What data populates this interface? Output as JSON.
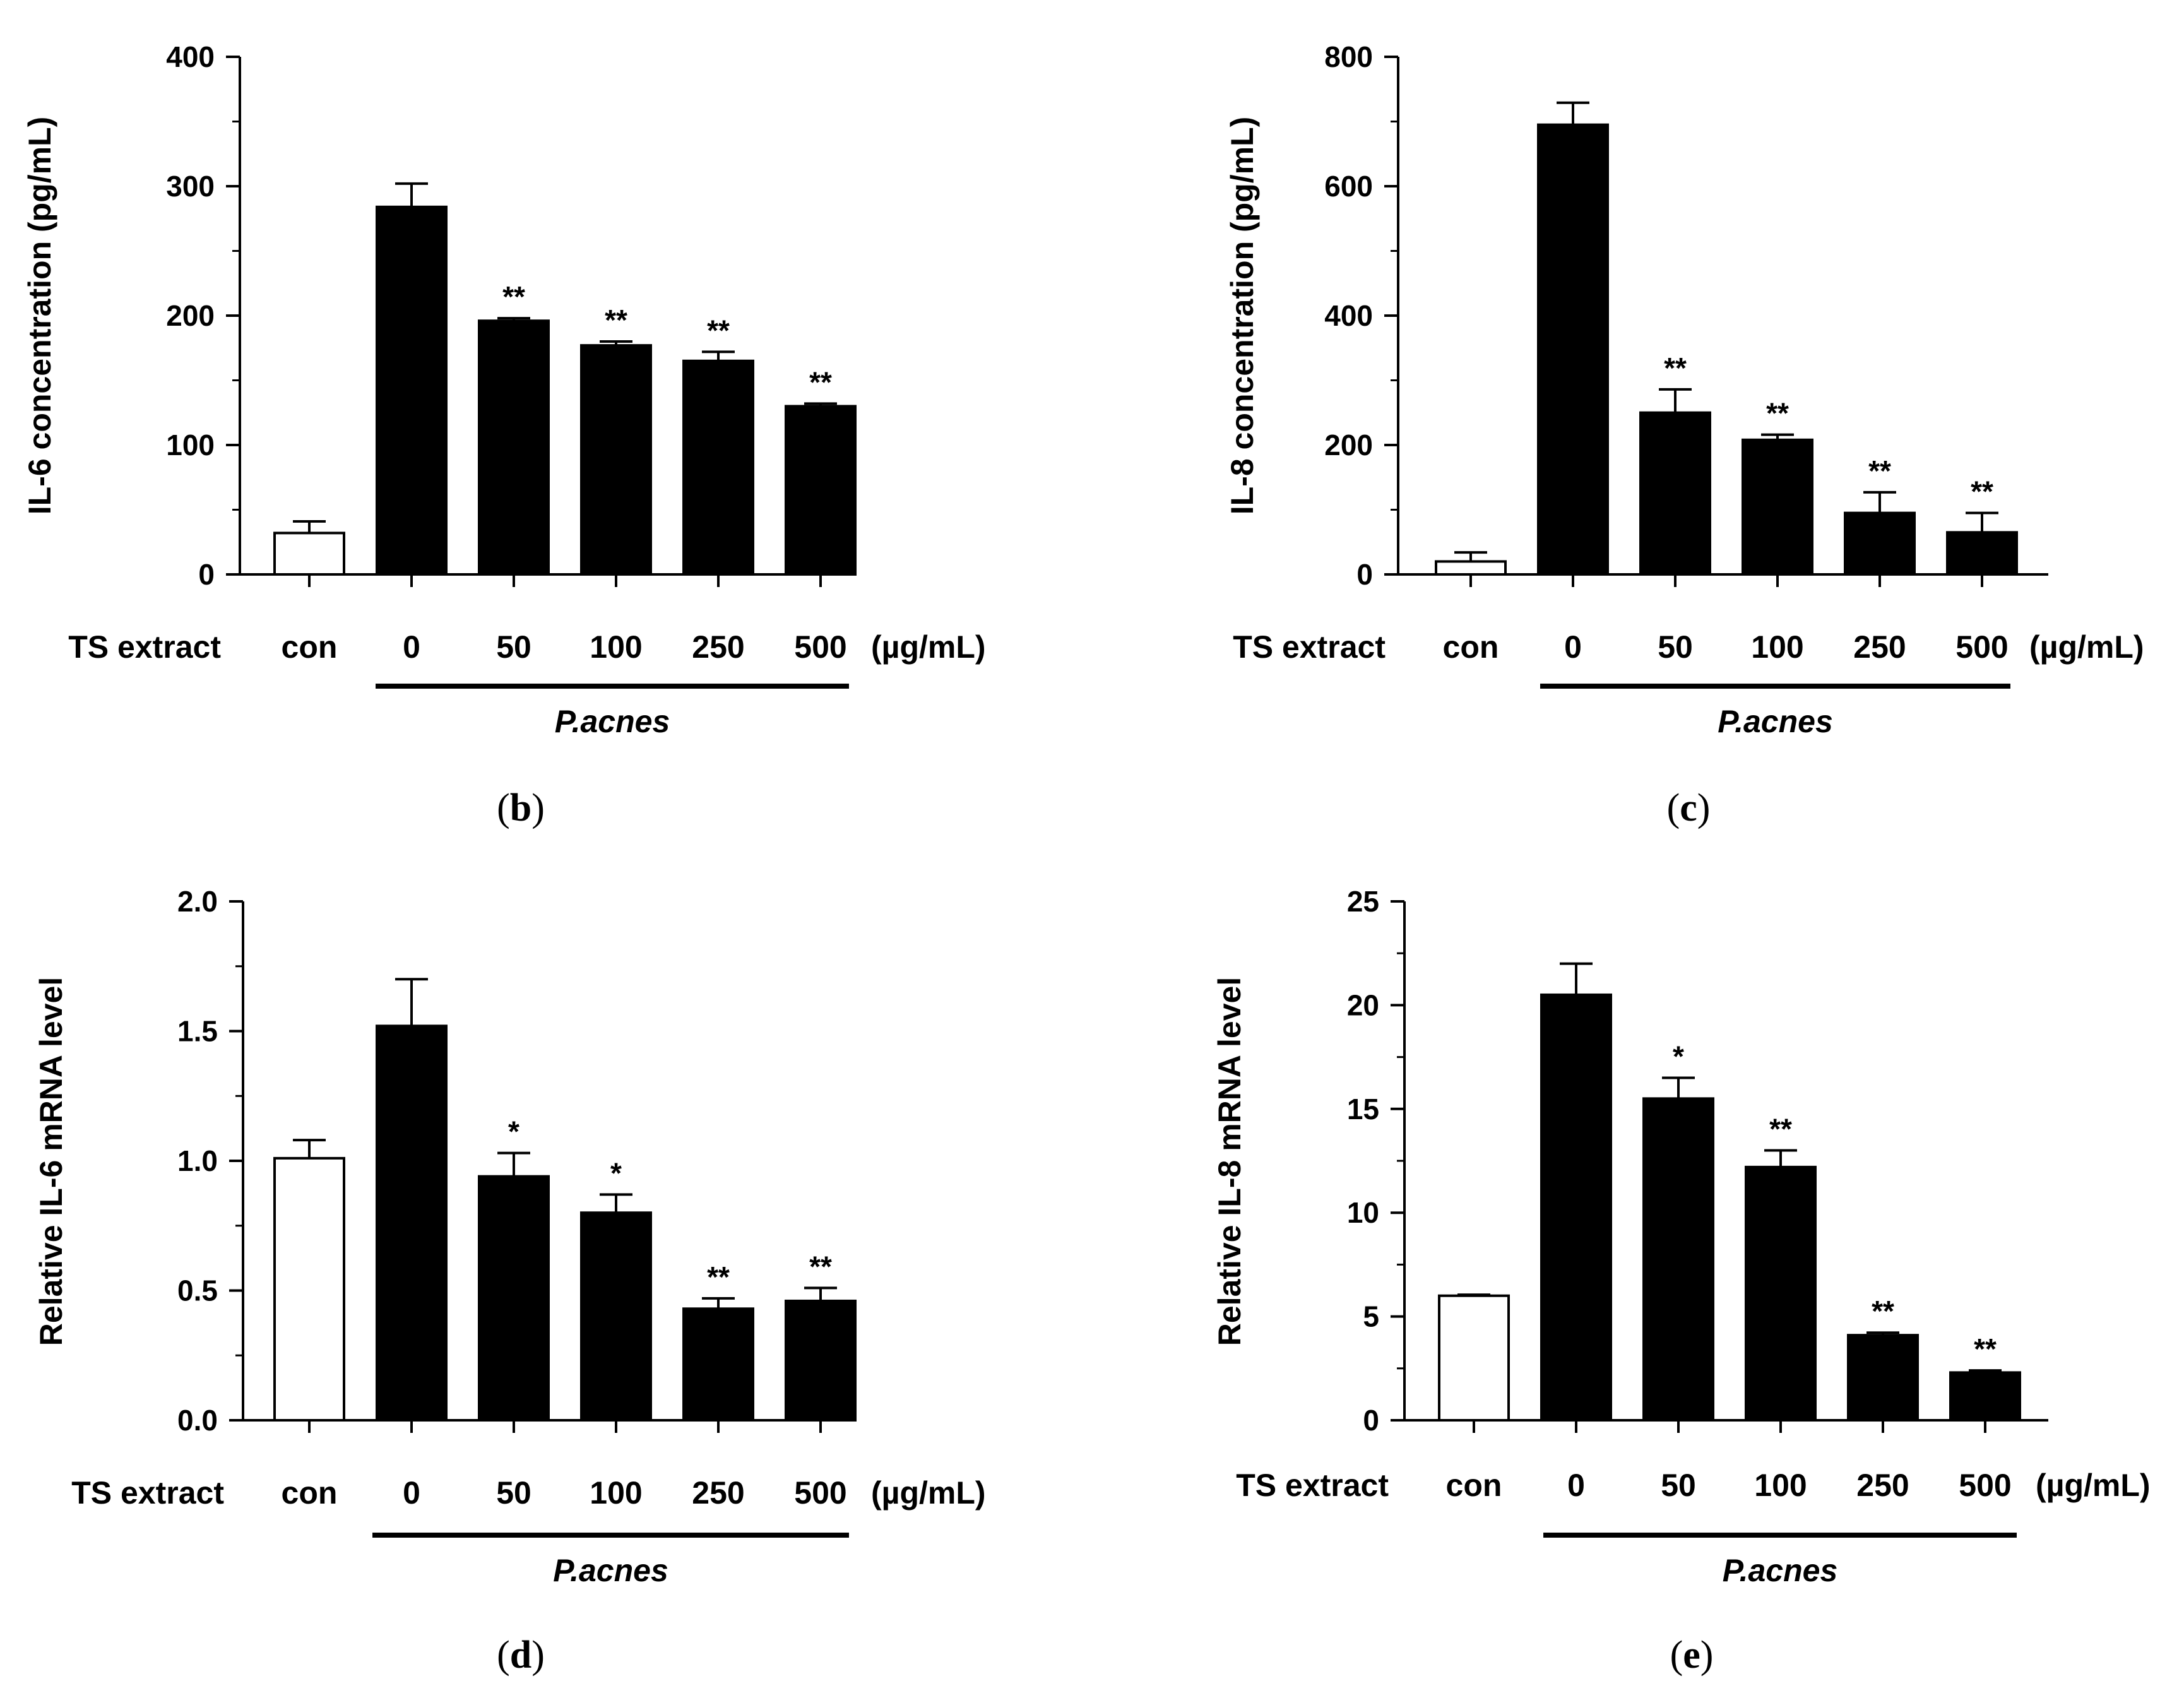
{
  "chart_data": [
    {
      "id": "b",
      "type": "bar",
      "ylabel": "IL-6 concentration (pg/mL)",
      "ylim": [
        0,
        400
      ],
      "yticks": [
        "0",
        "100",
        "200",
        "300",
        "400"
      ],
      "x_title": "TS extract",
      "categories": [
        "con",
        "0",
        "50",
        "100",
        "250",
        "500"
      ],
      "unit": "(µg/mL)",
      "values": [
        32,
        284,
        196,
        177,
        165,
        130
      ],
      "errors": [
        9,
        18,
        2,
        3,
        7,
        2
      ],
      "fills": [
        "#ffffff",
        "#000000",
        "#000000",
        "#000000",
        "#000000",
        "#000000"
      ],
      "significance": [
        "",
        "",
        "**",
        "**",
        "**",
        "**"
      ],
      "group_label": "P.acnes",
      "caption_open": "(",
      "caption_letter": "b",
      "caption_close": ")"
    },
    {
      "id": "c",
      "type": "bar",
      "ylabel": "IL-8 concentration (pg/mL)",
      "ylim": [
        0,
        800
      ],
      "yticks": [
        "0",
        "200",
        "400",
        "600",
        "800"
      ],
      "x_title": "TS extract",
      "categories": [
        "con",
        "0",
        "50",
        "100",
        "250",
        "500"
      ],
      "unit": "(µg/mL)",
      "values": [
        20,
        695,
        250,
        208,
        95,
        65
      ],
      "errors": [
        14,
        34,
        36,
        8,
        32,
        30
      ],
      "fills": [
        "#ffffff",
        "#000000",
        "#000000",
        "#000000",
        "#000000",
        "#000000"
      ],
      "significance": [
        "",
        "",
        "**",
        "**",
        "**",
        "**"
      ],
      "group_label": "P.acnes",
      "caption_open": "(",
      "caption_letter": "c",
      "caption_close": ")"
    },
    {
      "id": "d",
      "type": "bar",
      "ylabel": "Relative IL-6 mRNA  level",
      "ylim": [
        0,
        2.0
      ],
      "yticks": [
        "0.0",
        "0.5",
        "1.0",
        "1.5",
        "2.0"
      ],
      "x_title": "TS extract",
      "categories": [
        "con",
        "0",
        "50",
        "100",
        "250",
        "500"
      ],
      "unit": "(µg/mL)",
      "values": [
        1.01,
        1.52,
        0.94,
        0.8,
        0.43,
        0.46
      ],
      "errors": [
        0.07,
        0.18,
        0.09,
        0.07,
        0.04,
        0.05
      ],
      "fills": [
        "#ffffff",
        "#000000",
        "#000000",
        "#000000",
        "#000000",
        "#000000"
      ],
      "significance": [
        "",
        "",
        "*",
        "*",
        "**",
        "**"
      ],
      "group_label": "P.acnes",
      "caption_open": "(",
      "caption_letter": "d",
      "caption_close": ")"
    },
    {
      "id": "e",
      "type": "bar",
      "ylabel": "Relative IL-8 mRNA  level",
      "ylim": [
        0,
        25
      ],
      "yticks": [
        "0",
        "5",
        "10",
        "15",
        "20",
        "25"
      ],
      "x_title": "TS extract",
      "categories": [
        "con",
        "0",
        "50",
        "100",
        "250",
        "500"
      ],
      "unit": "(µg/mL)",
      "values": [
        6.0,
        20.5,
        15.5,
        12.2,
        4.1,
        2.3
      ],
      "errors": [
        0.05,
        1.5,
        1.0,
        0.8,
        0.12,
        0.1
      ],
      "fills": [
        "#ffffff",
        "#000000",
        "#000000",
        "#000000",
        "#000000",
        "#000000"
      ],
      "significance": [
        "",
        "",
        "*",
        "**",
        "**",
        "**"
      ],
      "group_label": "P.acnes",
      "caption_open": "(",
      "caption_letter": "e",
      "caption_close": ")"
    }
  ]
}
